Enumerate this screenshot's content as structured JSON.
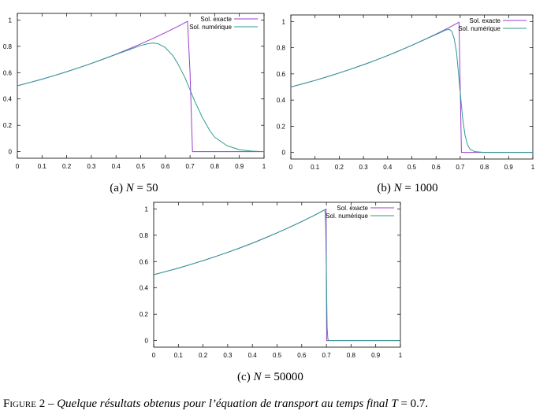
{
  "colors": {
    "exact": "#9a3fcf",
    "numeric": "#2a9d8f",
    "axis": "#000000"
  },
  "chart_data": [
    {
      "type": "line",
      "caption_prefix": "(a) ",
      "caption_var": "N",
      "caption_eq": " = ",
      "caption_value": "50",
      "xlim": [
        0,
        1
      ],
      "ylim": [
        -0.05,
        1.05
      ],
      "xticks": [
        "0",
        "0.1",
        "0.2",
        "0.3",
        "0.4",
        "0.5",
        "0.6",
        "0.7",
        "0.8",
        "0.9",
        "1"
      ],
      "yticks": [
        "0",
        "0.2",
        "0.4",
        "0.6",
        "0.8",
        "1"
      ],
      "legend": [
        "Sol. exacte",
        "Sol. numérique"
      ],
      "series": [
        {
          "name": "Sol. exacte",
          "x": [
            0,
            0.05,
            0.1,
            0.15,
            0.2,
            0.25,
            0.3,
            0.35,
            0.4,
            0.45,
            0.5,
            0.55,
            0.6,
            0.65,
            0.69,
            0.7,
            0.71,
            0.8,
            0.9,
            1
          ],
          "y": [
            0.5,
            0.525,
            0.55,
            0.578,
            0.607,
            0.638,
            0.67,
            0.704,
            0.74,
            0.778,
            0.818,
            0.86,
            0.904,
            0.95,
            0.99,
            0.6,
            0.0,
            0.0,
            0.0,
            0.0
          ]
        },
        {
          "name": "Sol. numérique",
          "x": [
            0,
            0.05,
            0.1,
            0.15,
            0.2,
            0.25,
            0.3,
            0.35,
            0.4,
            0.45,
            0.5,
            0.53,
            0.55,
            0.57,
            0.6,
            0.63,
            0.65,
            0.68,
            0.7,
            0.72,
            0.75,
            0.78,
            0.8,
            0.85,
            0.9,
            0.95,
            1
          ],
          "y": [
            0.5,
            0.525,
            0.55,
            0.578,
            0.607,
            0.638,
            0.67,
            0.704,
            0.738,
            0.772,
            0.806,
            0.82,
            0.825,
            0.82,
            0.79,
            0.73,
            0.67,
            0.56,
            0.47,
            0.38,
            0.26,
            0.16,
            0.11,
            0.045,
            0.015,
            0.004,
            0.0
          ]
        }
      ]
    },
    {
      "type": "line",
      "caption_prefix": "(b) ",
      "caption_var": "N",
      "caption_eq": " = ",
      "caption_value": "1000",
      "xlim": [
        0,
        1
      ],
      "ylim": [
        -0.05,
        1.05
      ],
      "xticks": [
        "0",
        "0.1",
        "0.2",
        "0.3",
        "0.4",
        "0.5",
        "0.6",
        "0.7",
        "0.8",
        "0.9",
        "1"
      ],
      "yticks": [
        "0",
        "0.2",
        "0.4",
        "0.6",
        "0.8",
        "1"
      ],
      "legend": [
        "Sol. exacte",
        "Sol. numérique"
      ],
      "series": [
        {
          "name": "Sol. exacte",
          "x": [
            0,
            0.05,
            0.1,
            0.15,
            0.2,
            0.25,
            0.3,
            0.35,
            0.4,
            0.45,
            0.5,
            0.55,
            0.6,
            0.65,
            0.695,
            0.7,
            0.705,
            0.8,
            0.9,
            1
          ],
          "y": [
            0.5,
            0.525,
            0.55,
            0.578,
            0.607,
            0.638,
            0.67,
            0.704,
            0.74,
            0.778,
            0.818,
            0.86,
            0.904,
            0.95,
            0.995,
            0.5,
            0.0,
            0.0,
            0.0,
            0.0
          ]
        },
        {
          "name": "Sol. numérique",
          "x": [
            0,
            0.05,
            0.1,
            0.15,
            0.2,
            0.25,
            0.3,
            0.35,
            0.4,
            0.45,
            0.5,
            0.55,
            0.6,
            0.64,
            0.655,
            0.665,
            0.675,
            0.685,
            0.69,
            0.695,
            0.7,
            0.705,
            0.71,
            0.72,
            0.73,
            0.74,
            0.76,
            0.8,
            1
          ],
          "y": [
            0.5,
            0.525,
            0.55,
            0.578,
            0.607,
            0.638,
            0.67,
            0.704,
            0.74,
            0.778,
            0.818,
            0.86,
            0.9,
            0.935,
            0.94,
            0.925,
            0.87,
            0.76,
            0.66,
            0.56,
            0.46,
            0.36,
            0.26,
            0.13,
            0.06,
            0.025,
            0.006,
            0.0,
            0.0
          ]
        }
      ]
    },
    {
      "type": "line",
      "caption_prefix": "(c) ",
      "caption_var": "N",
      "caption_eq": " = ",
      "caption_value": "50000",
      "xlim": [
        0,
        1
      ],
      "ylim": [
        -0.05,
        1.05
      ],
      "xticks": [
        "0",
        "0.1",
        "0.2",
        "0.3",
        "0.4",
        "0.5",
        "0.6",
        "0.7",
        "0.8",
        "0.9",
        "1"
      ],
      "yticks": [
        "0",
        "0.2",
        "0.4",
        "0.6",
        "0.8",
        "1"
      ],
      "legend": [
        "Sol. exacte",
        "Sol. numérique"
      ],
      "series": [
        {
          "name": "Sol. exacte",
          "x": [
            0,
            0.05,
            0.1,
            0.15,
            0.2,
            0.25,
            0.3,
            0.35,
            0.4,
            0.45,
            0.5,
            0.55,
            0.6,
            0.65,
            0.699,
            0.7,
            0.701,
            0.8,
            0.9,
            1
          ],
          "y": [
            0.5,
            0.525,
            0.55,
            0.578,
            0.607,
            0.638,
            0.67,
            0.704,
            0.74,
            0.778,
            0.818,
            0.86,
            0.904,
            0.95,
            0.999,
            0.5,
            0.0,
            0.0,
            0.0,
            0.0
          ]
        },
        {
          "name": "Sol. numérique",
          "x": [
            0,
            0.05,
            0.1,
            0.15,
            0.2,
            0.25,
            0.3,
            0.35,
            0.4,
            0.45,
            0.5,
            0.55,
            0.6,
            0.65,
            0.69,
            0.694,
            0.697,
            0.7,
            0.703,
            0.706,
            0.71,
            0.8,
            1
          ],
          "y": [
            0.5,
            0.525,
            0.55,
            0.578,
            0.607,
            0.638,
            0.67,
            0.704,
            0.74,
            0.778,
            0.818,
            0.86,
            0.904,
            0.95,
            0.99,
            0.99,
            0.9,
            0.5,
            0.1,
            0.01,
            0.0,
            0.0,
            0.0
          ]
        }
      ]
    }
  ],
  "figure_caption": {
    "label": "Figure 2",
    "dash": " – ",
    "text_before": "Quelque résultats obtenus pour l’équation de transport au temps final ",
    "var": "T",
    "text_eq": " = 0.7."
  }
}
